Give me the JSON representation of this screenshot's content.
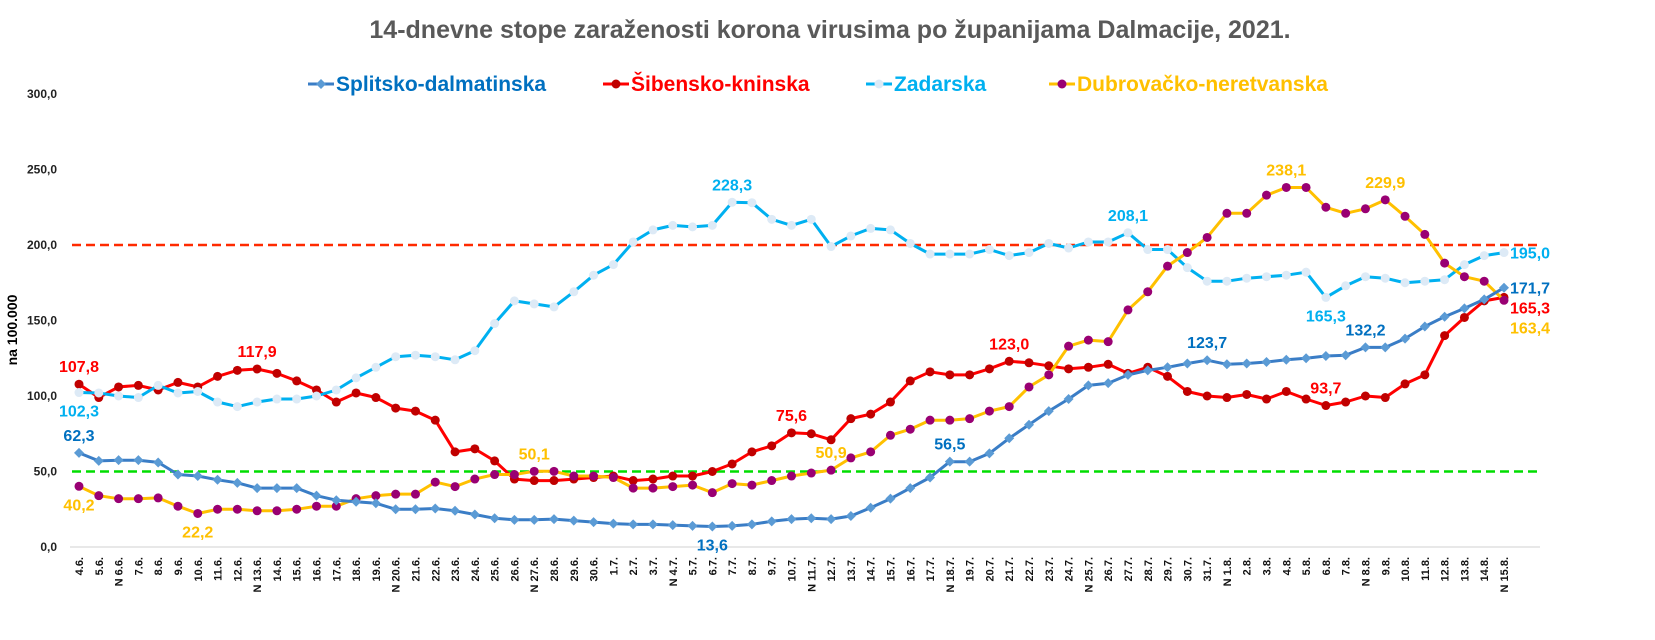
{
  "chart_data": {
    "type": "line",
    "title": "14-dnevne stope zaraženosti korona virusima po županijama Dalmacije, 2021.",
    "xlabel": "",
    "ylabel": "na 100.000",
    "ylim": [
      0,
      300
    ],
    "yticks": [
      "0,0",
      "50,0",
      "100,0",
      "150,0",
      "200,0",
      "250,0",
      "300,0"
    ],
    "ytick_values": [
      0,
      50,
      100,
      150,
      200,
      250,
      300
    ],
    "grid": false,
    "legend_position": "top",
    "reference_lines": [
      {
        "value": 200,
        "color": "#ff2a00"
      },
      {
        "value": 50,
        "color": "#00dd00"
      }
    ],
    "x": [
      "4.6.",
      "5.6.",
      "N 6.6.",
      "7.6.",
      "8.6.",
      "9.6.",
      "10.6.",
      "11.6.",
      "12.6.",
      "N 13.6.",
      "14.6.",
      "15.6.",
      "16.6.",
      "17.6.",
      "18.6.",
      "19.6.",
      "N 20.6.",
      "21.6.",
      "22.6.",
      "23.6.",
      "24.6.",
      "25.6.",
      "26.6.",
      "N 27.6.",
      "28.6.",
      "29.6.",
      "30.6.",
      "1.7.",
      "2.7.",
      "3.7.",
      "N 4.7.",
      "5.7.",
      "6.7.",
      "7.7.",
      "8.7.",
      "9.7.",
      "10.7.",
      "N 11.7.",
      "12.7.",
      "13.7.",
      "14.7.",
      "15.7.",
      "16.7.",
      "17.7.",
      "N 18.7.",
      "19.7.",
      "20.7.",
      "21.7.",
      "22.7.",
      "23.7.",
      "24.7.",
      "N 25.7.",
      "26.7.",
      "27.7.",
      "28.7.",
      "29.7.",
      "30.7.",
      "31.7.",
      "N 1.8.",
      "2.8.",
      "3.8.",
      "4.8.",
      "5.8.",
      "6.8.",
      "7.8.",
      "N 8.8.",
      "9.8.",
      "10.8.",
      "11.8.",
      "12.8.",
      "13.8.",
      "14.8.",
      "N 15.8."
    ],
    "series": [
      {
        "name": "Splitsko-dalmatinska",
        "line_color": "#3a7dc6",
        "marker_color": "#5b9bd5",
        "label_color": "#0070c0",
        "marker": "diamond",
        "values": [
          62.3,
          57,
          57.5,
          57.5,
          56,
          48,
          47,
          44.5,
          42.5,
          39,
          39,
          39,
          34,
          31,
          30,
          29,
          25,
          25,
          25.5,
          24,
          21.5,
          19,
          18,
          18,
          18.5,
          17.5,
          16.5,
          15.5,
          15,
          15,
          14.5,
          14,
          13.6,
          14,
          15,
          17,
          18.5,
          19,
          18.5,
          20.5,
          26,
          32,
          39,
          46,
          56.5,
          56.5,
          62,
          72,
          81,
          90,
          98,
          107,
          108.5,
          114,
          117,
          119,
          121.5,
          123.7,
          121,
          121.5,
          122.5,
          124,
          125,
          126.5,
          127,
          132.2,
          132.2,
          138,
          146,
          152.5,
          158,
          164,
          171.7
        ]
      },
      {
        "name": "Šibensko-kninska",
        "line_color": "#ff0000",
        "marker_color": "#c00000",
        "label_color": "#ff0000",
        "marker": "circle",
        "values": [
          107.8,
          99,
          106,
          107,
          104,
          109,
          106,
          113,
          117,
          117.9,
          115,
          110,
          104,
          96,
          102,
          99,
          92,
          90,
          84,
          63,
          65,
          57,
          45,
          44,
          44,
          45,
          46,
          47,
          44,
          45,
          47,
          47,
          50,
          55,
          63,
          67,
          75.6,
          75,
          71,
          85,
          88,
          96,
          110,
          116,
          114,
          114,
          118,
          123,
          122,
          120,
          118,
          119,
          121,
          115,
          119,
          113,
          103,
          100,
          99,
          101,
          98,
          103,
          98,
          93.7,
          96,
          100,
          99,
          108,
          114,
          140,
          152,
          163,
          165.3
        ]
      },
      {
        "name": "Zadarska",
        "line_color": "#00b0f0",
        "marker_color": "#ddeaf6",
        "label_color": "#00b0f0",
        "marker": "circle",
        "values": [
          102.3,
          102,
          100,
          99,
          107,
          102,
          103,
          96,
          93,
          96,
          98,
          98,
          100,
          104,
          112,
          119,
          126,
          127,
          126,
          124,
          130,
          148,
          163,
          161,
          159,
          169,
          180,
          187,
          202,
          210,
          213,
          212,
          213,
          228.3,
          228,
          217,
          213,
          217,
          199,
          206,
          211,
          210,
          201,
          194,
          194,
          194,
          197,
          193,
          195,
          201,
          198,
          202,
          202,
          208.1,
          197,
          197,
          185,
          176,
          176,
          178,
          179,
          180,
          182,
          165.3,
          173,
          179,
          178,
          175,
          176,
          177,
          187,
          193,
          195.0
        ]
      },
      {
        "name": "Dubrovačko-neretvanska",
        "line_color": "#ffc000",
        "marker_color": "#990073",
        "label_color": "#ffc000",
        "marker": "circle",
        "values": [
          40.2,
          34,
          32,
          32,
          32.5,
          27,
          22.2,
          25,
          25,
          24,
          24,
          25,
          27,
          27,
          32,
          34,
          35,
          35,
          43,
          40,
          45,
          48,
          48,
          50.1,
          50.1,
          47,
          47,
          46,
          39,
          39,
          40,
          41,
          36,
          42,
          41,
          44,
          47,
          49,
          50.9,
          59,
          63,
          74,
          78,
          84,
          84,
          85,
          90,
          93,
          106,
          114,
          133,
          137,
          136,
          157,
          169,
          186,
          195,
          205,
          221,
          221,
          233,
          238.1,
          238.1,
          225,
          221,
          224,
          229.9,
          219,
          207,
          188,
          179,
          176,
          163.4
        ]
      }
    ],
    "annotations": [
      {
        "series": 0,
        "index": 0,
        "text": "62,3",
        "pos": "above"
      },
      {
        "series": 0,
        "index": 32,
        "text": "13,6",
        "pos": "below"
      },
      {
        "series": 0,
        "index": 44,
        "text": "56,5",
        "pos": "above"
      },
      {
        "series": 0,
        "index": 57,
        "text": "123,7",
        "pos": "above"
      },
      {
        "series": 0,
        "index": 65,
        "text": "132,2",
        "pos": "above"
      },
      {
        "series": 0,
        "index": 72,
        "text": "171,7",
        "pos": "right"
      },
      {
        "series": 1,
        "index": 0,
        "text": "107,8",
        "pos": "above"
      },
      {
        "series": 1,
        "index": 9,
        "text": "117,9",
        "pos": "above"
      },
      {
        "series": 1,
        "index": 36,
        "text": "75,6",
        "pos": "above"
      },
      {
        "series": 1,
        "index": 47,
        "text": "123,0",
        "pos": "above"
      },
      {
        "series": 1,
        "index": 63,
        "text": "93,7",
        "pos": "above"
      },
      {
        "series": 1,
        "index": 72,
        "text": "165,3",
        "pos": "right"
      },
      {
        "series": 2,
        "index": 0,
        "text": "102,3",
        "pos": "below"
      },
      {
        "series": 2,
        "index": 33,
        "text": "228,3",
        "pos": "above"
      },
      {
        "series": 2,
        "index": 53,
        "text": "208,1",
        "pos": "above"
      },
      {
        "series": 2,
        "index": 63,
        "text": "165,3",
        "pos": "below"
      },
      {
        "series": 2,
        "index": 72,
        "text": "195,0",
        "pos": "right"
      },
      {
        "series": 3,
        "index": 0,
        "text": "40,2",
        "pos": "below"
      },
      {
        "series": 3,
        "index": 6,
        "text": "22,2",
        "pos": "below"
      },
      {
        "series": 3,
        "index": 23,
        "text": "50,1",
        "pos": "above"
      },
      {
        "series": 3,
        "index": 38,
        "text": "50,9",
        "pos": "above"
      },
      {
        "series": 3,
        "index": 61,
        "text": "238,1",
        "pos": "above"
      },
      {
        "series": 3,
        "index": 66,
        "text": "229,9",
        "pos": "above"
      },
      {
        "series": 3,
        "index": 72,
        "text": "163,4",
        "pos": "right-below"
      }
    ]
  }
}
